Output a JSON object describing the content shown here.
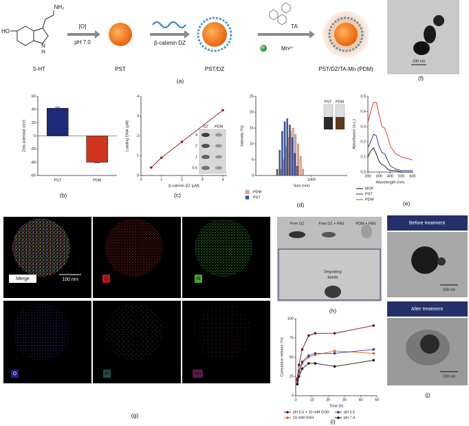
{
  "scheme": {
    "start": "5-HT",
    "substituent_oh": "HO",
    "substituent_amine": "NH₂",
    "ring_h": "H",
    "ring_n": "N",
    "step1_top": "[O]",
    "step1_bottom": "pH 7.0",
    "product1": "PST",
    "step2": "β-catenin DZ",
    "product2": "PST/DZ",
    "step3_top": "TA",
    "step3_bottom": "Mn²⁺",
    "product3": "PST/DZ/TA-Mn (PDM)"
  },
  "panel_labels": {
    "a": "(a)",
    "b": "(b)",
    "c": "(c)",
    "d": "(d)",
    "e": "(e)",
    "f": "(f)",
    "g": "(g)",
    "h": "(h)",
    "i": "(i)",
    "j": "(j)"
  },
  "tem_f": {
    "scale_bar": "200 nm"
  },
  "mapping_g": {
    "labels": [
      "Merge",
      "C",
      "N",
      "O",
      "P",
      "Mn"
    ],
    "scale_bar": "100 nm"
  },
  "gel_h": {
    "lanes": [
      "Free DZ",
      "Free DZ + FBS",
      "PDM + FBS"
    ],
    "annotation_lines": [
      "Degrading",
      "bands"
    ]
  },
  "tem_j": {
    "before": "Before treatment",
    "after": "After treatment",
    "scale_bar_before": "100 nm",
    "scale_bar_after": "100 nm"
  },
  "chart_data": [
    {
      "type": "bar",
      "categories": [
        "PST",
        "PDM"
      ],
      "values": [
        42,
        -40
      ],
      "errors": [
        1.5,
        1
      ],
      "colors": [
        "#1c2a7a",
        "#d0341e"
      ],
      "ylabel": "Zeta potential (mV)",
      "ylim": [
        -60,
        60
      ],
      "yticks": [
        -60,
        -40,
        -20,
        0,
        20,
        40,
        60
      ]
    },
    {
      "type": "line",
      "x": [
        0.5,
        1,
        2,
        4
      ],
      "values": [
        0.4,
        0.9,
        1.7,
        3.3
      ],
      "color": "#8b1a1a",
      "markers": true,
      "xlabel": "β-catenin DZ (μM)",
      "ylabel": "Loading DNA (μM)",
      "xlim": [
        0,
        4.2
      ],
      "xticks": [
        0,
        1,
        2,
        3,
        4
      ],
      "ylim": [
        0,
        4
      ],
      "yticks": [
        0,
        1,
        2,
        3,
        4
      ],
      "inset_column_labels": [
        "DZ",
        "PDM"
      ],
      "inset_row_labels": [
        "4",
        "2",
        "1",
        "0.5"
      ]
    },
    {
      "type": "bar",
      "x": [
        142,
        164,
        190,
        220,
        255,
        295,
        342,
        396,
        459,
        531,
        615
      ],
      "xlog": true,
      "series": [
        {
          "name": "PDM",
          "color": "#f4a582",
          "values": [
            null,
            2,
            5,
            9,
            12,
            14,
            15,
            13,
            10,
            6,
            2
          ]
        },
        {
          "name": "PST",
          "color": "#3a56a8",
          "values": [
            2,
            8,
            14,
            17,
            18,
            16,
            12,
            7,
            3,
            null,
            null
          ]
        }
      ],
      "xlabel": "Size (nm)",
      "ylabel": "Intensity (%)",
      "xlim": [
        40,
        8000
      ],
      "xticks": [
        1000
      ],
      "ylim": [
        0,
        25
      ],
      "yticks": [
        0,
        5,
        10,
        15,
        20,
        25
      ],
      "inset_labels": [
        "PST",
        "PDM"
      ]
    },
    {
      "type": "line",
      "x": [
        200,
        225,
        250,
        275,
        300,
        325,
        350,
        375,
        400,
        450,
        500,
        550,
        600
      ],
      "series": [
        {
          "name": "MOF",
          "color": "#000000",
          "values": [
            0.1,
            0.14,
            0.16,
            0.12,
            0.07,
            0.05,
            0.04,
            0.02,
            0.01,
            0.01,
            0,
            0,
            0
          ]
        },
        {
          "name": "PST",
          "color": "#1c2a7a",
          "values": [
            0.16,
            0.2,
            0.25,
            0.24,
            0.17,
            0.13,
            0.12,
            0.08,
            0.04,
            0.02,
            0.01,
            0.01,
            0.01
          ]
        },
        {
          "name": "PDM",
          "color": "#e0201b",
          "values": [
            0.33,
            0.4,
            0.46,
            0.46,
            0.38,
            0.3,
            0.29,
            0.24,
            0.17,
            0.12,
            0.1,
            0.09,
            0.08
          ]
        }
      ],
      "xlabel": "Wavelength (nm)",
      "ylabel": "Absorbance (a.u.)",
      "xlim": [
        200,
        600
      ],
      "xticks": [
        200,
        300,
        400,
        500,
        600
      ],
      "ylim": [
        0,
        0.5
      ],
      "yticks": [
        {
          "value": 0,
          "label": "0.0"
        },
        0.1,
        0.2,
        0.3,
        0.4,
        0.5
      ]
    },
    {
      "type": "line",
      "x": [
        1,
        2,
        4,
        8,
        12,
        24,
        48
      ],
      "markers": true,
      "series": [
        {
          "name": "pH 5.5 + 10 mM GSH",
          "color": "#6b1414",
          "values": [
            22,
            40,
            60,
            78,
            81,
            81,
            91
          ]
        },
        {
          "name": "10 mM GSH",
          "color": "#e0601b",
          "values": [
            18,
            30,
            42,
            50,
            53,
            58,
            55
          ]
        },
        {
          "name": "pH 5.5",
          "color": "#3b3ba0",
          "values": [
            20,
            32,
            44,
            52,
            55,
            55,
            60
          ]
        },
        {
          "name": "pH 7.4",
          "color": "#111111",
          "values": [
            15,
            25,
            35,
            42,
            42,
            38,
            46
          ]
        }
      ],
      "xlabel": "Time (h)",
      "ylabel": "Cumulative release (%)",
      "xlim": [
        0,
        50
      ],
      "xticks": [
        0,
        10,
        20,
        30,
        40,
        50
      ],
      "ylim": [
        0,
        100
      ],
      "yticks": [
        0,
        25,
        50,
        75,
        100
      ]
    }
  ]
}
